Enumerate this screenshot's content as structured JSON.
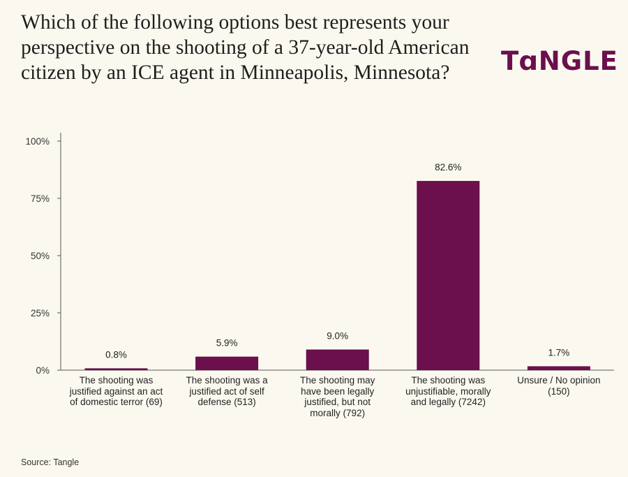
{
  "title": "Which of the following options best represents your perspective on the shooting of a 37-year-old American citizen by an ICE agent in Minneapolis, Minnesota?",
  "logo_text": "TANGLE",
  "source": "Source: Tangle",
  "colors": {
    "bar": "#6b0f4d",
    "axis": "#555555",
    "background": "#fbf9ef"
  },
  "chart_data": {
    "type": "bar",
    "categories": [
      "The shooting was justified against an act of domestic terror (69)",
      "The shooting was a justified act of self defense (513)",
      "The shooting may have been legally justified, but not morally (792)",
      "The shooting was unjustifiable, morally and legally (7242)",
      "Unsure / No opinion (150)"
    ],
    "values": [
      0.8,
      5.9,
      9.0,
      82.6,
      1.7
    ],
    "value_labels": [
      "0.8%",
      "5.9%",
      "9.0%",
      "82.6%",
      "1.7%"
    ],
    "yticks": [
      0,
      25,
      50,
      75,
      100
    ],
    "ytick_labels": [
      "0%",
      "25%",
      "50%",
      "75%",
      "100%"
    ],
    "ylim": [
      0,
      100
    ],
    "grid": false,
    "legend": "none"
  }
}
